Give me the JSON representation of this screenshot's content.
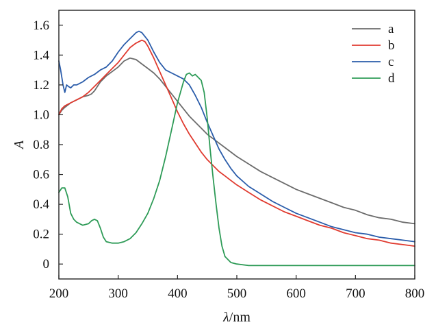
{
  "chart_data": {
    "type": "line",
    "xlabel_italic": "λ",
    "xlabel_rest": "/nm",
    "ylabel": "A",
    "xlim": [
      200,
      800
    ],
    "ylim": [
      -0.1,
      1.7
    ],
    "xticks": [
      200,
      300,
      400,
      500,
      600,
      700,
      800
    ],
    "yticks": [
      0,
      0.2,
      0.4,
      0.6,
      0.8,
      1.0,
      1.2,
      1.4,
      1.6
    ],
    "ytick_labels": [
      "0",
      "0.2",
      "0.4",
      "0.6",
      "0.8",
      "1.0",
      "1.2",
      "1.4",
      "1.6"
    ],
    "grid": false,
    "legend_position": "top-right",
    "series": [
      {
        "name": "a",
        "color": "#6b6b6b",
        "points": [
          [
            200,
            1.0
          ],
          [
            205,
            1.03
          ],
          [
            210,
            1.05
          ],
          [
            220,
            1.08
          ],
          [
            230,
            1.1
          ],
          [
            240,
            1.12
          ],
          [
            250,
            1.13
          ],
          [
            255,
            1.14
          ],
          [
            260,
            1.16
          ],
          [
            270,
            1.22
          ],
          [
            280,
            1.26
          ],
          [
            290,
            1.29
          ],
          [
            300,
            1.32
          ],
          [
            310,
            1.36
          ],
          [
            320,
            1.38
          ],
          [
            330,
            1.37
          ],
          [
            340,
            1.34
          ],
          [
            350,
            1.31
          ],
          [
            360,
            1.28
          ],
          [
            370,
            1.24
          ],
          [
            380,
            1.19
          ],
          [
            390,
            1.14
          ],
          [
            400,
            1.09
          ],
          [
            410,
            1.04
          ],
          [
            420,
            0.99
          ],
          [
            430,
            0.95
          ],
          [
            440,
            0.91
          ],
          [
            450,
            0.87
          ],
          [
            460,
            0.84
          ],
          [
            480,
            0.78
          ],
          [
            500,
            0.72
          ],
          [
            520,
            0.67
          ],
          [
            540,
            0.62
          ],
          [
            560,
            0.58
          ],
          [
            580,
            0.54
          ],
          [
            600,
            0.5
          ],
          [
            620,
            0.47
          ],
          [
            640,
            0.44
          ],
          [
            660,
            0.41
          ],
          [
            680,
            0.38
          ],
          [
            700,
            0.36
          ],
          [
            720,
            0.33
          ],
          [
            740,
            0.31
          ],
          [
            760,
            0.3
          ],
          [
            780,
            0.28
          ],
          [
            800,
            0.27
          ]
        ]
      },
      {
        "name": "b",
        "color": "#e03a2f",
        "points": [
          [
            200,
            1.0
          ],
          [
            205,
            1.04
          ],
          [
            210,
            1.06
          ],
          [
            220,
            1.08
          ],
          [
            230,
            1.1
          ],
          [
            240,
            1.12
          ],
          [
            250,
            1.15
          ],
          [
            260,
            1.19
          ],
          [
            270,
            1.23
          ],
          [
            280,
            1.27
          ],
          [
            290,
            1.31
          ],
          [
            300,
            1.35
          ],
          [
            310,
            1.4
          ],
          [
            320,
            1.45
          ],
          [
            330,
            1.48
          ],
          [
            340,
            1.5
          ],
          [
            345,
            1.49
          ],
          [
            350,
            1.46
          ],
          [
            360,
            1.38
          ],
          [
            370,
            1.29
          ],
          [
            380,
            1.2
          ],
          [
            390,
            1.11
          ],
          [
            400,
            1.02
          ],
          [
            410,
            0.94
          ],
          [
            420,
            0.87
          ],
          [
            430,
            0.81
          ],
          [
            440,
            0.75
          ],
          [
            450,
            0.7
          ],
          [
            460,
            0.66
          ],
          [
            470,
            0.62
          ],
          [
            480,
            0.59
          ],
          [
            490,
            0.56
          ],
          [
            500,
            0.53
          ],
          [
            520,
            0.48
          ],
          [
            540,
            0.43
          ],
          [
            560,
            0.39
          ],
          [
            580,
            0.35
          ],
          [
            600,
            0.32
          ],
          [
            620,
            0.29
          ],
          [
            640,
            0.26
          ],
          [
            660,
            0.24
          ],
          [
            680,
            0.21
          ],
          [
            700,
            0.19
          ],
          [
            720,
            0.17
          ],
          [
            740,
            0.16
          ],
          [
            760,
            0.14
          ],
          [
            780,
            0.13
          ],
          [
            800,
            0.12
          ]
        ]
      },
      {
        "name": "c",
        "color": "#2a5caa",
        "points": [
          [
            200,
            1.36
          ],
          [
            203,
            1.3
          ],
          [
            207,
            1.2
          ],
          [
            210,
            1.15
          ],
          [
            213,
            1.2
          ],
          [
            216,
            1.19
          ],
          [
            220,
            1.18
          ],
          [
            225,
            1.2
          ],
          [
            230,
            1.2
          ],
          [
            240,
            1.22
          ],
          [
            250,
            1.25
          ],
          [
            260,
            1.27
          ],
          [
            270,
            1.3
          ],
          [
            280,
            1.32
          ],
          [
            290,
            1.36
          ],
          [
            300,
            1.42
          ],
          [
            310,
            1.47
          ],
          [
            320,
            1.51
          ],
          [
            330,
            1.55
          ],
          [
            335,
            1.56
          ],
          [
            340,
            1.55
          ],
          [
            350,
            1.5
          ],
          [
            360,
            1.42
          ],
          [
            370,
            1.35
          ],
          [
            380,
            1.3
          ],
          [
            390,
            1.28
          ],
          [
            400,
            1.26
          ],
          [
            410,
            1.24
          ],
          [
            420,
            1.2
          ],
          [
            430,
            1.13
          ],
          [
            440,
            1.05
          ],
          [
            450,
            0.95
          ],
          [
            460,
            0.86
          ],
          [
            470,
            0.77
          ],
          [
            480,
            0.7
          ],
          [
            490,
            0.64
          ],
          [
            500,
            0.59
          ],
          [
            520,
            0.52
          ],
          [
            540,
            0.47
          ],
          [
            560,
            0.42
          ],
          [
            580,
            0.38
          ],
          [
            600,
            0.34
          ],
          [
            620,
            0.31
          ],
          [
            640,
            0.28
          ],
          [
            660,
            0.25
          ],
          [
            680,
            0.23
          ],
          [
            700,
            0.21
          ],
          [
            720,
            0.2
          ],
          [
            740,
            0.18
          ],
          [
            760,
            0.17
          ],
          [
            780,
            0.16
          ],
          [
            800,
            0.15
          ]
        ]
      },
      {
        "name": "d",
        "color": "#2e9b57",
        "points": [
          [
            200,
            0.48
          ],
          [
            205,
            0.51
          ],
          [
            210,
            0.51
          ],
          [
            215,
            0.45
          ],
          [
            220,
            0.34
          ],
          [
            225,
            0.3
          ],
          [
            230,
            0.28
          ],
          [
            240,
            0.26
          ],
          [
            250,
            0.27
          ],
          [
            255,
            0.29
          ],
          [
            260,
            0.3
          ],
          [
            265,
            0.29
          ],
          [
            270,
            0.24
          ],
          [
            275,
            0.18
          ],
          [
            280,
            0.15
          ],
          [
            290,
            0.14
          ],
          [
            300,
            0.14
          ],
          [
            310,
            0.15
          ],
          [
            320,
            0.17
          ],
          [
            330,
            0.21
          ],
          [
            340,
            0.27
          ],
          [
            350,
            0.34
          ],
          [
            360,
            0.44
          ],
          [
            370,
            0.56
          ],
          [
            380,
            0.72
          ],
          [
            390,
            0.9
          ],
          [
            400,
            1.08
          ],
          [
            410,
            1.22
          ],
          [
            415,
            1.27
          ],
          [
            420,
            1.28
          ],
          [
            425,
            1.26
          ],
          [
            430,
            1.27
          ],
          [
            435,
            1.25
          ],
          [
            440,
            1.23
          ],
          [
            445,
            1.15
          ],
          [
            450,
            0.98
          ],
          [
            455,
            0.77
          ],
          [
            460,
            0.58
          ],
          [
            465,
            0.4
          ],
          [
            470,
            0.24
          ],
          [
            475,
            0.12
          ],
          [
            480,
            0.05
          ],
          [
            490,
            0.01
          ],
          [
            500,
            0.0
          ],
          [
            520,
            -0.01
          ],
          [
            560,
            -0.01
          ],
          [
            600,
            -0.01
          ],
          [
            700,
            -0.01
          ],
          [
            800,
            -0.01
          ]
        ]
      }
    ]
  }
}
